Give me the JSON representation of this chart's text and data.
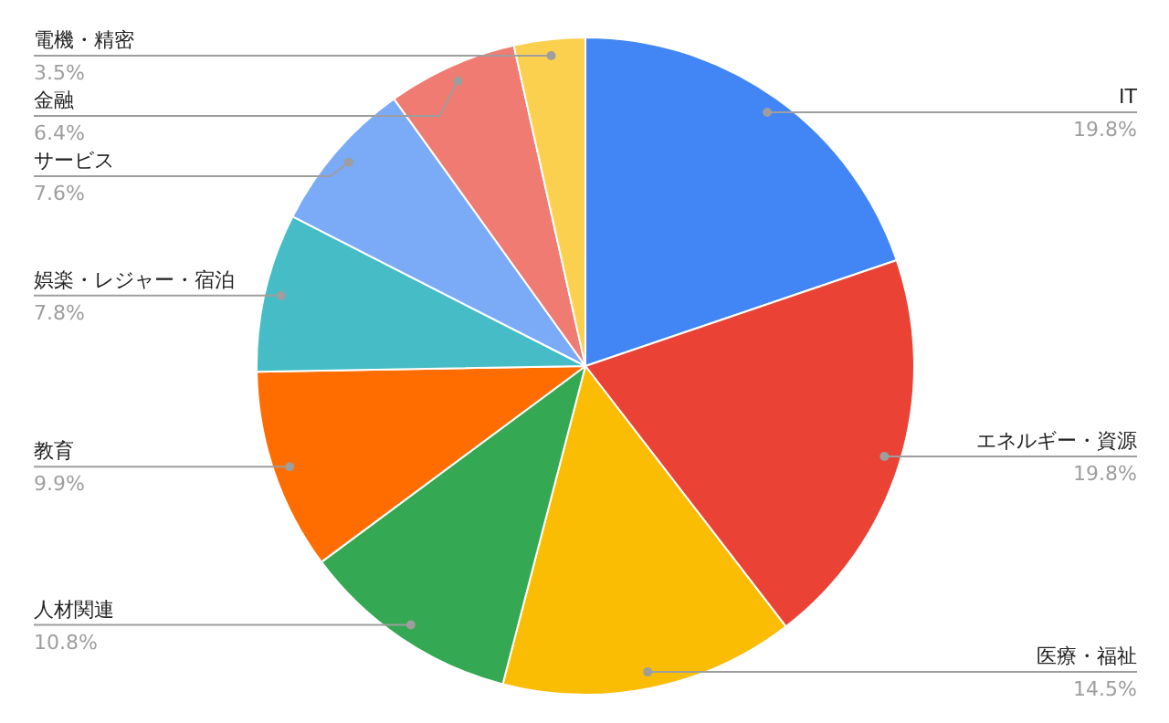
{
  "chart_data": {
    "type": "pie",
    "categories": [
      "IT",
      "エネルギー・資源",
      "医療・福祉",
      "人材関連",
      "教育",
      "娯楽・レジャー・宿泊",
      "サービス",
      "金融",
      "電機・精密"
    ],
    "values": [
      19.8,
      19.8,
      14.5,
      10.8,
      9.9,
      7.8,
      7.6,
      6.4,
      3.5
    ],
    "colors": [
      "#4285f4",
      "#ea4335",
      "#fbbc04",
      "#34a853",
      "#ff6d01",
      "#46bdc6",
      "#7baaf7",
      "#f07b72",
      "#fcd04f"
    ],
    "value_labels": [
      "19.8%",
      "19.8%",
      "14.5%",
      "10.8%",
      "9.9%",
      "7.8%",
      "7.6%",
      "6.4%",
      "3.5%"
    ]
  }
}
